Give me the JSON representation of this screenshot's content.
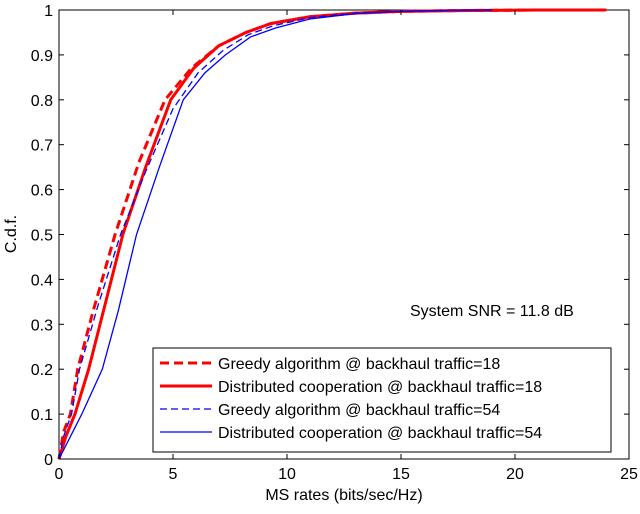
{
  "chart_data": {
    "type": "line",
    "title": "",
    "xlabel": "MS rates (bits/sec/Hz)",
    "ylabel": "C.d.f.",
    "xlim": [
      0,
      25
    ],
    "ylim": [
      0,
      1
    ],
    "xticks": [
      "0",
      "5",
      "10",
      "15",
      "20",
      "25"
    ],
    "yticks": [
      "0",
      "0.1",
      "0.2",
      "0.3",
      "0.4",
      "0.5",
      "0.6",
      "0.7",
      "0.8",
      "0.9",
      "1"
    ],
    "grid": false,
    "legend_position": "bottom-right",
    "annotation": "System SNR = 11.8 dB",
    "series": [
      {
        "name": "Greedy algorithm @ backhaul traffic=18",
        "color": "#ff0000",
        "style": "dashed-thick",
        "x": [
          0,
          0.2,
          0.5,
          0.82,
          1.5,
          2.46,
          3.5,
          4.65,
          5.8,
          7.0,
          8.2,
          9.3,
          11,
          13,
          15,
          18,
          21,
          24
        ],
        "y": [
          0,
          0.06,
          0.1,
          0.2,
          0.33,
          0.5,
          0.66,
          0.8,
          0.87,
          0.92,
          0.95,
          0.97,
          0.985,
          0.993,
          0.997,
          0.999,
          1,
          1
        ]
      },
      {
        "name": "Distributed cooperation @ backhaul traffic=18",
        "color": "#ff0000",
        "style": "solid-thick",
        "x": [
          0,
          0.3,
          0.7,
          1.3,
          2.0,
          2.8,
          3.8,
          4.9,
          5.9,
          7.0,
          8.2,
          9.3,
          11,
          13,
          15,
          18,
          21,
          24
        ],
        "y": [
          0,
          0.05,
          0.1,
          0.2,
          0.34,
          0.5,
          0.65,
          0.8,
          0.87,
          0.92,
          0.95,
          0.97,
          0.985,
          0.993,
          0.997,
          0.999,
          1,
          1
        ]
      },
      {
        "name": "Greedy algorithm @ backhaul traffic=54",
        "color": "#0000ff",
        "style": "dashed-thin",
        "x": [
          0,
          0.2,
          0.55,
          0.9,
          1.7,
          2.7,
          3.8,
          5.0,
          6.1,
          7.2,
          8.3,
          9.4,
          11,
          13,
          15,
          17,
          19
        ],
        "y": [
          0,
          0.05,
          0.1,
          0.2,
          0.34,
          0.5,
          0.64,
          0.78,
          0.86,
          0.91,
          0.945,
          0.965,
          0.983,
          0.993,
          0.997,
          0.999,
          1
        ]
      },
      {
        "name": "Distributed cooperation @ backhaul traffic=54",
        "color": "#0000ff",
        "style": "solid-thin",
        "x": [
          0,
          0.5,
          1.0,
          1.9,
          2.6,
          3.4,
          4.4,
          5.45,
          6.4,
          7.3,
          8.4,
          9.5,
          11,
          13,
          15,
          17,
          19
        ],
        "y": [
          0,
          0.05,
          0.1,
          0.2,
          0.33,
          0.5,
          0.65,
          0.8,
          0.86,
          0.9,
          0.94,
          0.96,
          0.98,
          0.992,
          0.997,
          0.999,
          1
        ]
      }
    ]
  }
}
